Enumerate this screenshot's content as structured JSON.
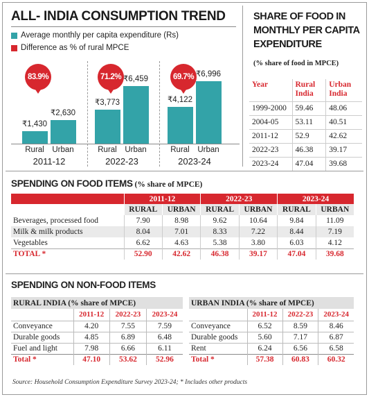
{
  "trend": {
    "title": "ALL- INDIA CONSUMPTION TREND",
    "legend": [
      {
        "label": "Average monthly per capita expenditure (Rs)",
        "color": "#33a3a8"
      },
      {
        "label": "Difference as % of rural MPCE",
        "color": "#d7272e"
      }
    ],
    "axis_rural": "Rural",
    "axis_urban": "Urban",
    "periods": [
      {
        "year": "2011-12",
        "pct": "83.9%",
        "rural_label": "₹1,430",
        "urban_label": "₹2,630",
        "rural": 1430,
        "urban": 2630
      },
      {
        "year": "2022-23",
        "pct": "71.2%",
        "rural_label": "₹3,773",
        "urban_label": "₹6,459",
        "rural": 3773,
        "urban": 6459
      },
      {
        "year": "2023-24",
        "pct": "69.7%",
        "rural_label": "₹4,122",
        "urban_label": "₹6,996",
        "rural": 4122,
        "urban": 6996
      }
    ]
  },
  "share": {
    "title_1": "SHARE OF FOOD IN",
    "title_2": "MONTHLY PER CAPITA",
    "title_3": "EXPENDITURE",
    "subtitle": "(% share of food in MPCE)",
    "col_year": "Year",
    "col_rural_1": "Rural",
    "col_rural_2": "India",
    "col_urban_1": "Urban",
    "col_urban_2": "India",
    "rows": [
      {
        "year": "1999-2000",
        "rural": "59.46",
        "urban": "48.06"
      },
      {
        "year": "2004-05",
        "rural": "53.11",
        "urban": "40.51"
      },
      {
        "year": "2011-12",
        "rural": "52.9",
        "urban": "42.62"
      },
      {
        "year": "2022-23",
        "rural": "46.38",
        "urban": "39.17"
      },
      {
        "year": "2023-24",
        "rural": "47.04",
        "urban": "39.68"
      }
    ]
  },
  "food": {
    "title": "SPENDING ON FOOD ITEMS",
    "subtitle": " (% share of MPCE)",
    "years": [
      "2011-12",
      "2022-23",
      "2023-24"
    ],
    "rural": "RURAL",
    "urban": "URBAN",
    "rows": [
      {
        "item": "Beverages, processed food",
        "v": [
          "7.90",
          "8.98",
          "9.62",
          "10.64",
          "9.84",
          "11.09"
        ]
      },
      {
        "item": "Milk & milk products",
        "v": [
          "8.04",
          "7.01",
          "8.33",
          "7.22",
          "8.44",
          "7.19"
        ]
      },
      {
        "item": "Vegetables",
        "v": [
          "6.62",
          "4.63",
          "5.38",
          "3.80",
          "6.03",
          "4.12"
        ]
      },
      {
        "item": "TOTAL *",
        "v": [
          "52.90",
          "42.62",
          "46.38",
          "39.17",
          "47.04",
          "39.68"
        ]
      }
    ]
  },
  "nonfood": {
    "title": "SPENDING ON NON-FOOD ITEMS",
    "years": [
      "2011-12",
      "2022-23",
      "2023-24"
    ],
    "rural": {
      "header": "RURAL INDIA (% share of MPCE)",
      "rows": [
        {
          "item": "Conveyance",
          "v": [
            "4.20",
            "7.55",
            "7.59"
          ]
        },
        {
          "item": "Durable goods",
          "v": [
            "4.85",
            "6.89",
            "6.48"
          ]
        },
        {
          "item": "Fuel and light",
          "v": [
            "7.98",
            "6.66",
            "6.11"
          ]
        },
        {
          "item": "Total *",
          "v": [
            "47.10",
            "53.62",
            "52.96"
          ]
        }
      ]
    },
    "urban": {
      "header": "URBAN INDIA (% share of MPCE)",
      "rows": [
        {
          "item": "Conveyance",
          "v": [
            "6.52",
            "8.59",
            "8.46"
          ]
        },
        {
          "item": "Durable goods",
          "v": [
            "5.60",
            "7.17",
            "6.87"
          ]
        },
        {
          "item": "Rent",
          "v": [
            "6.24",
            "6.56",
            "6.58"
          ]
        },
        {
          "item": "Total *",
          "v": [
            "57.38",
            "60.83",
            "60.32"
          ]
        }
      ]
    }
  },
  "source": "Source: Household Consumption Expenditure Survey 2023-24; * Includes other products"
}
